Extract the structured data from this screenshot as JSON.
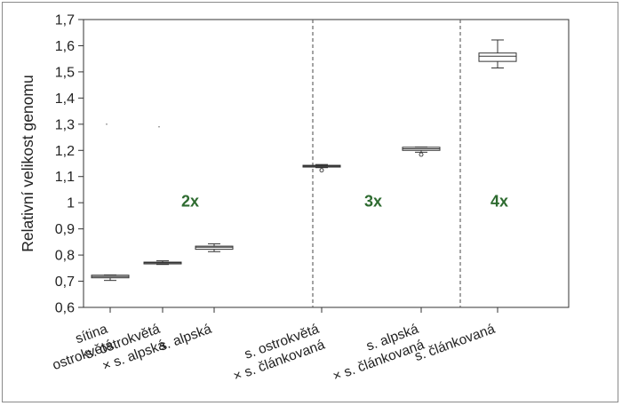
{
  "chart_data": {
    "type": "box",
    "ylabel": "Relativní velikost genomu",
    "ylim": [
      0.6,
      1.7
    ],
    "yticks": [
      "0,6",
      "0,7",
      "0,8",
      "0,9",
      "1",
      "1,1",
      "1,2",
      "1,3",
      "1,4",
      "1,5",
      "1,6",
      "1,7"
    ],
    "categories": [
      [
        "sítina",
        "ostrokvětá"
      ],
      [
        "s. ostrokvětá",
        "× s. alpská"
      ],
      [
        "s. alpská"
      ],
      [
        "s. ostrokvětá",
        "× s. článkovaná"
      ],
      [
        "s. alpská",
        "× s. článkovaná"
      ],
      [
        "s. článkovaná"
      ]
    ],
    "boxes": [
      {
        "whisker_low": 0.703,
        "q1": 0.713,
        "median": 0.718,
        "q3": 0.723,
        "whisker_high": 0.724,
        "outliers": []
      },
      {
        "whisker_low": 0.764,
        "q1": 0.767,
        "median": 0.77,
        "q3": 0.773,
        "whisker_high": 0.778,
        "outliers": []
      },
      {
        "whisker_low": 0.813,
        "q1": 0.822,
        "median": 0.83,
        "q3": 0.834,
        "whisker_high": 0.843,
        "outliers": []
      },
      {
        "whisker_low": 1.134,
        "q1": 1.138,
        "median": 1.14,
        "q3": 1.143,
        "whisker_high": 1.146,
        "outliers": [
          1.124
        ]
      },
      {
        "whisker_low": 1.193,
        "q1": 1.2,
        "median": 1.206,
        "q3": 1.212,
        "whisker_high": 1.213,
        "outliers": [
          1.184
        ]
      },
      {
        "whisker_low": 1.515,
        "q1": 1.54,
        "median": 1.56,
        "q3": 1.572,
        "whisker_high": 1.622,
        "outliers": []
      }
    ],
    "stray_points": [
      {
        "category": 0,
        "y": 1.3
      },
      {
        "category": 1,
        "y": 1.29
      }
    ],
    "group_separators_after": [
      2,
      4
    ],
    "ploidy_labels": [
      {
        "text": "2x",
        "category": 1.5,
        "y": 0.985
      },
      {
        "text": "3x",
        "category": 3.5,
        "y": 0.985
      },
      {
        "text": "4x",
        "category": 5.0,
        "y": 0.985
      }
    ],
    "colors": {
      "ploidy": "#2e6b30",
      "box": "#333333",
      "separator": "#666666"
    }
  }
}
